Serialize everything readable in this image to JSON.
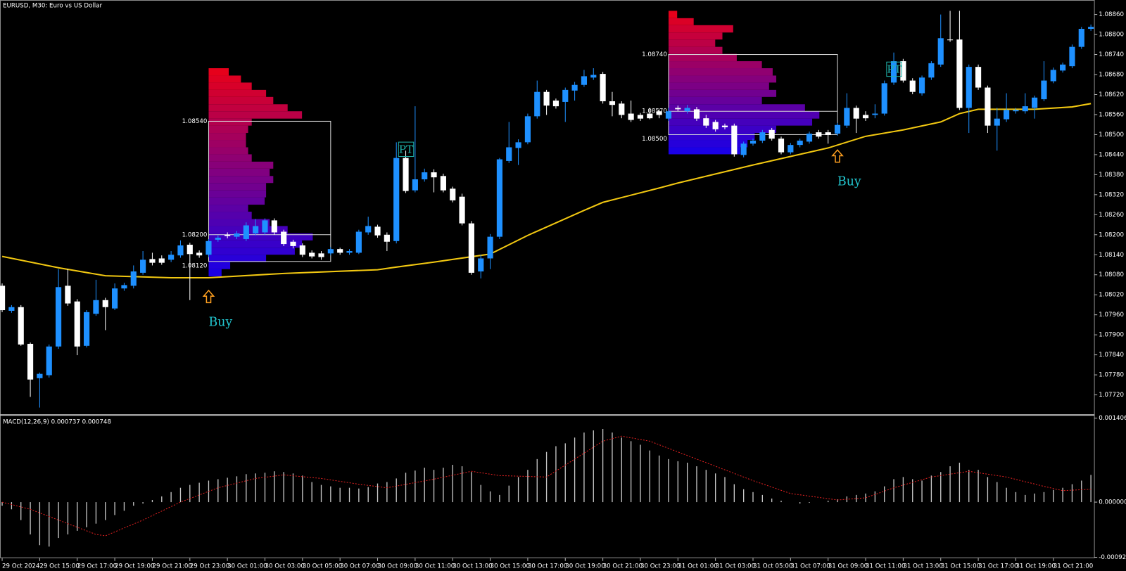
{
  "chart_data": [
    {
      "type": "candlestick",
      "title": "EURUSD, M30:  Euro vs US Dollar",
      "colors": {
        "up": "#1e90ff",
        "down": "#ffffff"
      },
      "open": [
        1.08047,
        1.07972,
        1.07983,
        1.07873,
        1.0777,
        1.07779,
        1.07865,
        1.08047,
        1.08,
        1.07867,
        1.07963,
        1.08004,
        1.07979,
        1.08039,
        1.08047,
        1.08086,
        1.08127,
        1.08129,
        1.08125,
        1.08138,
        1.0817,
        1.08146,
        1.0814,
        1.08185,
        1.082,
        1.08194,
        1.08187,
        1.08204,
        1.08207,
        1.08243,
        1.08209,
        1.08179,
        1.08168,
        1.08146,
        1.08144,
        1.08144,
        1.08157,
        1.08146,
        1.08146,
        1.08207,
        1.08224,
        1.082,
        1.08181,
        1.0843,
        1.08333,
        1.08366,
        1.08387,
        1.08376,
        1.08338,
        1.08314,
        1.08234,
        1.0809,
        1.08129,
        1.08194,
        1.08421,
        1.0846,
        1.08477,
        1.08555,
        1.08628,
        1.08602,
        1.08598,
        1.08632,
        1.08649,
        1.08671,
        1.08682,
        1.086,
        1.08593,
        1.08563,
        1.08559,
        1.08563,
        1.0857,
        1.08548,
        1.0858,
        1.0857,
        1.08576,
        1.08549,
        1.08538,
        1.08527,
        1.08527,
        1.08439,
        1.08473,
        1.08482,
        1.08514,
        1.08488,
        1.08447,
        1.08469,
        1.08479,
        1.08507,
        1.08507,
        1.08503,
        1.08527,
        1.0858,
        1.08559,
        1.08559,
        1.08563,
        1.08656,
        1.0872,
        1.08662,
        1.08624,
        1.08671,
        1.0871,
        1.08785,
        1.08785,
        1.0858,
        1.08703,
        1.08641,
        1.08527,
        1.08546,
        1.0857,
        1.0857,
        1.0858,
        1.08606,
        1.0866,
        1.08692,
        1.08705,
        1.08763,
        1.08817
      ],
      "high": [
        1.08054,
        1.07989,
        1.07989,
        1.07877,
        1.07787,
        1.07871,
        1.08097,
        1.08097,
        1.08007,
        1.07974,
        1.08065,
        1.08011,
        1.08054,
        1.08056,
        1.08108,
        1.08151,
        1.08146,
        1.08138,
        1.08151,
        1.08183,
        1.08176,
        1.08153,
        1.08187,
        1.08198,
        1.08207,
        1.08211,
        1.08237,
        1.08247,
        1.08249,
        1.08249,
        1.08215,
        1.08185,
        1.08174,
        1.08153,
        1.08151,
        1.08163,
        1.08161,
        1.08157,
        1.08215,
        1.08254,
        1.0823,
        1.08207,
        1.08477,
        1.08452,
        1.08585,
        1.08398,
        1.08396,
        1.08383,
        1.08344,
        1.08323,
        1.08241,
        1.0814,
        1.08202,
        1.0843,
        1.08538,
        1.08486,
        1.08563,
        1.08662,
        1.08634,
        1.08608,
        1.08641,
        1.08658,
        1.08694,
        1.08699,
        1.08688,
        1.08628,
        1.086,
        1.08602,
        1.08565,
        1.0858,
        1.08576,
        1.0858,
        1.08587,
        1.08589,
        1.08583,
        1.08559,
        1.08544,
        1.08533,
        1.08533,
        1.08479,
        1.08488,
        1.08514,
        1.0852,
        1.08494,
        1.08475,
        1.08488,
        1.08509,
        1.08514,
        1.08514,
        1.08535,
        1.08624,
        1.08587,
        1.0857,
        1.08591,
        1.08662,
        1.08746,
        1.08727,
        1.08669,
        1.08677,
        1.0872,
        1.0886,
        1.08871,
        1.08871,
        1.0871,
        1.0871,
        1.08647,
        1.0858,
        1.08624,
        1.0858,
        1.08624,
        1.08617,
        1.0872,
        1.08701,
        1.08716,
        1.0877,
        1.08823,
        1.0883
      ],
      "low": [
        1.07968,
        1.07966,
        1.07867,
        1.07714,
        1.07682,
        1.07772,
        1.07858,
        1.07987,
        1.07839,
        1.07862,
        1.07957,
        1.07914,
        1.07974,
        1.08032,
        1.08039,
        1.0808,
        1.08108,
        1.0811,
        1.08118,
        1.08131,
        1.08004,
        1.08131,
        1.08133,
        1.08179,
        1.08189,
        1.08187,
        1.08181,
        1.08198,
        1.082,
        1.082,
        1.08166,
        1.08159,
        1.08133,
        1.08129,
        1.08125,
        1.08138,
        1.0814,
        1.0814,
        1.08142,
        1.082,
        1.08191,
        1.08151,
        1.08174,
        1.08325,
        1.08327,
        1.08359,
        1.08327,
        1.08327,
        1.08297,
        1.08228,
        1.0808,
        1.08069,
        1.08097,
        1.08187,
        1.08415,
        1.08409,
        1.08471,
        1.08548,
        1.08559,
        1.08578,
        1.08538,
        1.08602,
        1.08643,
        1.08664,
        1.08593,
        1.08555,
        1.08549,
        1.08538,
        1.08541,
        1.08546,
        1.08549,
        1.08541,
        1.0857,
        1.08563,
        1.08541,
        1.0852,
        1.08509,
        1.08516,
        1.08434,
        1.08432,
        1.08467,
        1.08475,
        1.08482,
        1.08441,
        1.08441,
        1.08462,
        1.08473,
        1.08488,
        1.08473,
        1.08497,
        1.0852,
        1.08505,
        1.08541,
        1.08549,
        1.08557,
        1.08649,
        1.08656,
        1.08621,
        1.08617,
        1.08664,
        1.08703,
        1.08778,
        1.08574,
        1.08505,
        1.08634,
        1.08505,
        1.08452,
        1.08538,
        1.08563,
        1.08563,
        1.08548,
        1.086,
        1.08654,
        1.08686,
        1.08699,
        1.08757,
        1.08811
      ],
      "close": [
        1.07974,
        1.07983,
        1.07871,
        1.07766,
        1.07783,
        1.07865,
        1.08043,
        1.07994,
        1.07865,
        1.07968,
        1.08004,
        1.07983,
        1.08039,
        1.08049,
        1.0809,
        1.08125,
        1.08116,
        1.08116,
        1.0814,
        1.08168,
        1.08142,
        1.08138,
        1.08181,
        1.08191,
        1.08196,
        1.08204,
        1.08228,
        1.08226,
        1.08243,
        1.08207,
        1.08172,
        1.08166,
        1.0814,
        1.08135,
        1.08133,
        1.08157,
        1.08146,
        1.08151,
        1.08209,
        1.08226,
        1.08198,
        1.08179,
        1.0843,
        1.08331,
        1.08366,
        1.08387,
        1.08372,
        1.08333,
        1.08303,
        1.08234,
        1.08086,
        1.08129,
        1.08194,
        1.08426,
        1.08462,
        1.08477,
        1.08555,
        1.08628,
        1.08587,
        1.08585,
        1.08634,
        1.08649,
        1.08675,
        1.08679,
        1.086,
        1.08589,
        1.08559,
        1.08544,
        1.08548,
        1.08549,
        1.08559,
        1.0857,
        1.08576,
        1.0858,
        1.08548,
        1.08527,
        1.08516,
        1.08522,
        1.08441,
        1.08473,
        1.08482,
        1.08507,
        1.08488,
        1.08447,
        1.08469,
        1.08482,
        1.08503,
        1.08494,
        1.08499,
        1.08529,
        1.0858,
        1.08548,
        1.08549,
        1.08563,
        1.08654,
        1.0872,
        1.08662,
        1.08628,
        1.08671,
        1.08714,
        1.08789,
        1.08783,
        1.0858,
        1.08703,
        1.08641,
        1.08527,
        1.08548,
        1.08574,
        1.08574,
        1.08585,
        1.08611,
        1.08662,
        1.08694,
        1.0871,
        1.08763,
        1.08817,
        1.08823
      ],
      "ylim": [
        1.07663,
        1.08897
      ],
      "yticks": [
        {
          "value": 1.0886,
          "label": "1.08860"
        },
        {
          "value": 1.088,
          "label": "1.08800"
        },
        {
          "value": 1.0874,
          "label": "1.08740"
        },
        {
          "value": 1.0868,
          "label": "1.08680"
        },
        {
          "value": 1.0862,
          "label": "1.08620"
        },
        {
          "value": 1.0856,
          "label": "1.08560"
        },
        {
          "value": 1.085,
          "label": "1.08500"
        },
        {
          "value": 1.0844,
          "label": "1.08440"
        },
        {
          "value": 1.0838,
          "label": "1.08380"
        },
        {
          "value": 1.0832,
          "label": "1.08320"
        },
        {
          "value": 1.0826,
          "label": "1.08260"
        },
        {
          "value": 1.082,
          "label": "1.08200"
        },
        {
          "value": 1.0814,
          "label": "1.08140"
        },
        {
          "value": 1.0808,
          "label": "1.08080"
        },
        {
          "value": 1.0802,
          "label": "1.08020"
        },
        {
          "value": 1.0796,
          "label": "1.07960"
        },
        {
          "value": 1.079,
          "label": "1.07900"
        },
        {
          "value": 1.0784,
          "label": "1.07840"
        },
        {
          "value": 1.0778,
          "label": "1.07780"
        },
        {
          "value": 1.0772,
          "label": "1.07720"
        }
      ],
      "xticks": [
        {
          "bar": 0,
          "label": "29 Oct 2024"
        },
        {
          "bar": 4,
          "label": "29 Oct 15:00"
        },
        {
          "bar": 8,
          "label": "29 Oct 17:00"
        },
        {
          "bar": 12,
          "label": "29 Oct 19:00"
        },
        {
          "bar": 16,
          "label": "29 Oct 21:00"
        },
        {
          "bar": 20,
          "label": "29 Oct 23:00"
        },
        {
          "bar": 24,
          "label": "30 Oct 01:00"
        },
        {
          "bar": 28,
          "label": "30 Oct 03:00"
        },
        {
          "bar": 32,
          "label": "30 Oct 05:00"
        },
        {
          "bar": 36,
          "label": "30 Oct 07:00"
        },
        {
          "bar": 40,
          "label": "30 Oct 09:00"
        },
        {
          "bar": 44,
          "label": "30 Oct 11:00"
        },
        {
          "bar": 48,
          "label": "30 Oct 13:00"
        },
        {
          "bar": 52,
          "label": "30 Oct 15:00"
        },
        {
          "bar": 56,
          "label": "30 Oct 17:00"
        },
        {
          "bar": 60,
          "label": "30 Oct 19:00"
        },
        {
          "bar": 64,
          "label": "30 Oct 21:00"
        },
        {
          "bar": 68,
          "label": "30 Oct 23:00"
        },
        {
          "bar": 72,
          "label": "31 Oct 01:00"
        },
        {
          "bar": 76,
          "label": "31 Oct 03:00"
        },
        {
          "bar": 80,
          "label": "31 Oct 05:00"
        },
        {
          "bar": 84,
          "label": "31 Oct 07:00"
        },
        {
          "bar": 88,
          "label": "31 Oct 09:00"
        },
        {
          "bar": 92,
          "label": "31 Oct 11:00"
        },
        {
          "bar": 96,
          "label": "31 Oct 13:00"
        },
        {
          "bar": 100,
          "label": "31 Oct 15:00"
        },
        {
          "bar": 104,
          "label": "31 Oct 17:00"
        },
        {
          "bar": 108,
          "label": "31 Oct 19:00"
        },
        {
          "bar": 112,
          "label": "31 Oct 21:00"
        }
      ],
      "moving_average": {
        "color": "#f2c811",
        "bars": [
          0,
          6,
          11,
          18,
          22,
          30,
          40,
          42,
          46,
          52,
          56,
          62,
          64,
          70,
          72,
          80,
          88,
          92,
          96,
          100,
          102,
          104,
          110,
          114,
          116
        ],
        "values": [
          1.08135,
          1.08101,
          1.08077,
          1.08071,
          1.08071,
          1.08084,
          1.08095,
          1.08103,
          1.08118,
          1.08142,
          1.08198,
          1.08273,
          1.08297,
          1.0834,
          1.08355,
          1.08409,
          1.0846,
          1.08495,
          1.08514,
          1.08538,
          1.08563,
          1.08576,
          1.08576,
          1.08583,
          1.08593
        ]
      },
      "volume_profiles": [
        {
          "start_bar": 22,
          "end_bar": 35,
          "bins": [
            1.08699,
            1.08677,
            1.08656,
            1.08634,
            1.08613,
            1.08591,
            1.0857,
            1.08548,
            1.08527,
            1.08505,
            1.08484,
            1.08462,
            1.08441,
            1.08419,
            1.08398,
            1.08376,
            1.08355,
            1.08333,
            1.08312,
            1.0829,
            1.08269,
            1.08247,
            1.08226,
            1.08204,
            1.08183,
            1.08161,
            1.0814,
            1.08118,
            1.08097,
            1.08075
          ],
          "volumes": [
            28,
            45,
            60,
            80,
            90,
            110,
            130,
            60,
            55,
            52,
            52,
            55,
            60,
            90,
            85,
            90,
            80,
            80,
            78,
            55,
            60,
            85,
            110,
            145,
            130,
            120,
            80,
            30,
            18
          ],
          "levels": [
            {
              "value": 1.0854,
              "label": "1.08540"
            },
            {
              "value": 1.082,
              "label": "1.08200"
            },
            {
              "value": 1.0812,
              "label": "1.08120"
            }
          ]
        },
        {
          "start_bar": 71,
          "end_bar": 89,
          "bins": [
            1.08871,
            1.08849,
            1.08828,
            1.08806,
            1.08785,
            1.08763,
            1.08742,
            1.0872,
            1.08699,
            1.08677,
            1.08656,
            1.08634,
            1.08613,
            1.08591,
            1.0857,
            1.08548,
            1.08527,
            1.08505,
            1.08484,
            1.08462,
            1.08441
          ],
          "volumes": [
            12,
            35,
            90,
            75,
            65,
            75,
            95,
            130,
            145,
            150,
            140,
            150,
            130,
            190,
            210,
            200,
            150,
            120,
            110,
            100
          ],
          "levels": [
            {
              "value": 1.0874,
              "label": "1.08740"
            },
            {
              "value": 1.0857,
              "label": "1.08570"
            },
            {
              "value": 1.085,
              "label": "1.08500"
            }
          ]
        }
      ],
      "signals": [
        {
          "bar": 22,
          "price": 1.08033,
          "label": "Buy"
        },
        {
          "bar": 89,
          "price": 1.08454,
          "label": "Buy"
        }
      ],
      "targets": [
        {
          "bar": 43,
          "price": 1.08456,
          "label": "PT"
        },
        {
          "bar": 95,
          "price": 1.08696,
          "label": "PT"
        }
      ]
    },
    {
      "type": "bar",
      "title": "MACD(12,26,9) 0.000737 0.000748",
      "color": "#c8c8c8",
      "values": [
        -6e-05,
        -0.00012,
        -0.0003,
        -0.00054,
        -0.00072,
        -0.000744,
        -0.0006,
        -0.00054,
        -0.00048,
        -0.00042,
        -0.00036,
        -0.0003,
        -0.000216,
        -0.000144,
        -6e-05,
        -2.4e-05,
        3.6e-05,
        9.6e-05,
        0.000168,
        0.00024,
        0.000288,
        0.000324,
        0.00036,
        0.000384,
        0.000408,
        0.000432,
        0.000468,
        0.00048,
        0.000492,
        0.000516,
        0.000504,
        0.00048,
        0.000444,
        0.000336,
        0.000288,
        0.000264,
        0.00024,
        0.00024,
        0.000228,
        0.000252,
        0.000312,
        0.000336,
        0.000396,
        0.000492,
        0.000528,
        0.000576,
        0.00054,
        0.000576,
        0.000624,
        0.0006,
        0.000504,
        0.000288,
        0.00018,
        0.00012,
        0.000276,
        0.00042,
        0.00054,
        0.00072,
        0.00084,
        0.000936,
        0.000984,
        0.00108,
        0.001164,
        0.0012,
        0.001224,
        0.001164,
        0.00108,
        0.00102,
        0.00096,
        0.000864,
        0.00078,
        0.00072,
        0.000684,
        0.00066,
        0.0006,
        0.00054,
        0.00048,
        0.00042,
        0.0003,
        0.000216,
        0.000168,
        0.00012,
        6e-05,
        2.4e-05,
        0,
        -2.4e-05,
        -1.2e-05,
        0,
        2.4e-05,
        4.8e-05,
        9.6e-05,
        0.00012,
        0.000144,
        0.00018,
        0.000264,
        0.000384,
        0.00042,
        0.000384,
        0.00036,
        0.000444,
        0.000504,
        0.0006,
        0.00066,
        0.00054,
        0.00054,
        0.00042,
        0.000336,
        0.00024,
        0.000168,
        0.00012,
        0.000144,
        0.000168,
        0.000204,
        0.00024,
        0.0003,
        0.00036,
        0.000456
      ],
      "signal": {
        "color": "#e02020",
        "bars": [
          0,
          3,
          7,
          10,
          11,
          15,
          19,
          23,
          27,
          30,
          34,
          38,
          41,
          46,
          50,
          53,
          58,
          61,
          64,
          66,
          69,
          72,
          76,
          80,
          84,
          89,
          92,
          95,
          99,
          103,
          107,
          111,
          113,
          116
        ],
        "values": [
          0,
          -0.00012,
          -0.00036,
          -0.00054,
          -0.000564,
          -0.0003,
          0,
          0.00024,
          0.000396,
          0.000456,
          0.000396,
          0.0003,
          0.00024,
          0.000384,
          0.000516,
          0.000444,
          0.00042,
          0.00072,
          0.00102,
          0.001104,
          0.00102,
          0.00084,
          0.0006,
          0.00036,
          0.000144,
          3.6e-05,
          7.2e-05,
          0.00024,
          0.00042,
          0.000516,
          0.00042,
          0.000264,
          0.000192,
          0.000216
        ]
      },
      "ylim": [
        -0.000936,
        0.00144
      ],
      "yticks": [
        {
          "value": 0.001406,
          "label": "0.001406"
        },
        {
          "value": 0,
          "label": "0.000000"
        },
        {
          "value": -0.000923,
          "label": "-0.000923"
        }
      ]
    }
  ]
}
